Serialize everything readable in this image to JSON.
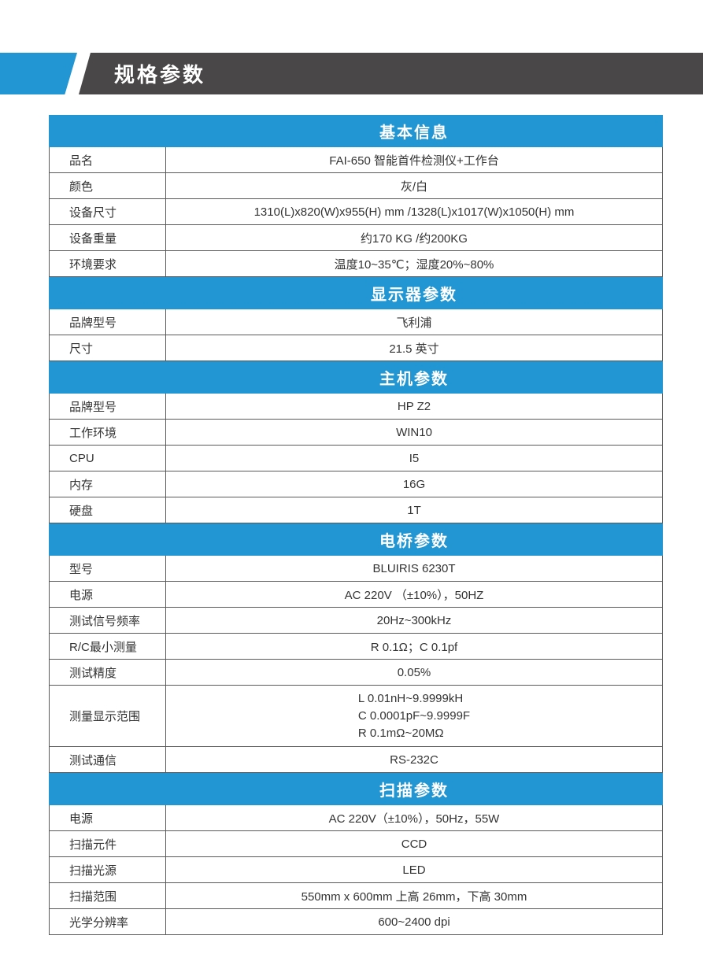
{
  "page_header": {
    "title": "规格参数"
  },
  "colors": {
    "accent_blue": "#2196D3",
    "band_gray": "#4A4748",
    "border_gray": "#595959",
    "text": "#333333"
  },
  "table": {
    "sections": [
      {
        "id": "basic-info",
        "title": "基本信息",
        "rows": [
          {
            "label": "品名",
            "value": "FAI-650 智能首件检测仪+工作台"
          },
          {
            "label": "颜色",
            "value": "灰/白"
          },
          {
            "label": "设备尺寸",
            "value": "1310(L)x820(W)x955(H) mm /1328(L)x1017(W)x1050(H) mm"
          },
          {
            "label": "设备重量",
            "value": "约170 KG /约200KG"
          },
          {
            "label": "环境要求",
            "value": "温度10~35℃；湿度20%~80%"
          }
        ]
      },
      {
        "id": "display-params",
        "title": "显示器参数",
        "rows": [
          {
            "label": "品牌型号",
            "value": "飞利浦"
          },
          {
            "label": "尺寸",
            "value": "21.5 英寸"
          }
        ]
      },
      {
        "id": "host-params",
        "title": "主机参数",
        "rows": [
          {
            "label": "品牌型号",
            "value": "HP Z2"
          },
          {
            "label": "工作环境",
            "value": "WIN10"
          },
          {
            "label": "CPU",
            "value": "I5"
          },
          {
            "label": "内存",
            "value": "16G"
          },
          {
            "label": "硬盘",
            "value": "1T"
          }
        ]
      },
      {
        "id": "bridge-params",
        "title": "电桥参数",
        "rows": [
          {
            "label": "型号",
            "value": "BLUIRIS 6230T"
          },
          {
            "label": "电源",
            "value": "AC 220V （±10%），50HZ"
          },
          {
            "label": "测试信号频率",
            "value": "20Hz~300kHz"
          },
          {
            "label": "R/C最小测量",
            "value": "R 0.1Ω；C 0.1pf"
          },
          {
            "label": "测试精度",
            "value": "0.05%"
          },
          {
            "label": "测量显示范围",
            "value_lines": [
              "L   0.01nH~9.9999kH",
              "C   0.0001pF~9.9999F",
              "R   0.1mΩ~20MΩ"
            ]
          },
          {
            "label": "测试通信",
            "value": "RS-232C"
          }
        ]
      },
      {
        "id": "scan-params",
        "title": "扫描参数",
        "rows": [
          {
            "label": "电源",
            "value": "AC 220V（±10%），50Hz，55W"
          },
          {
            "label": "扫描元件",
            "value": "CCD"
          },
          {
            "label": "扫描光源",
            "value": "LED"
          },
          {
            "label": "扫描范围",
            "value": "550mm x 600mm 上高 26mm，下高 30mm"
          },
          {
            "label": "光学分辨率",
            "value": "600~2400 dpi"
          }
        ]
      }
    ]
  }
}
